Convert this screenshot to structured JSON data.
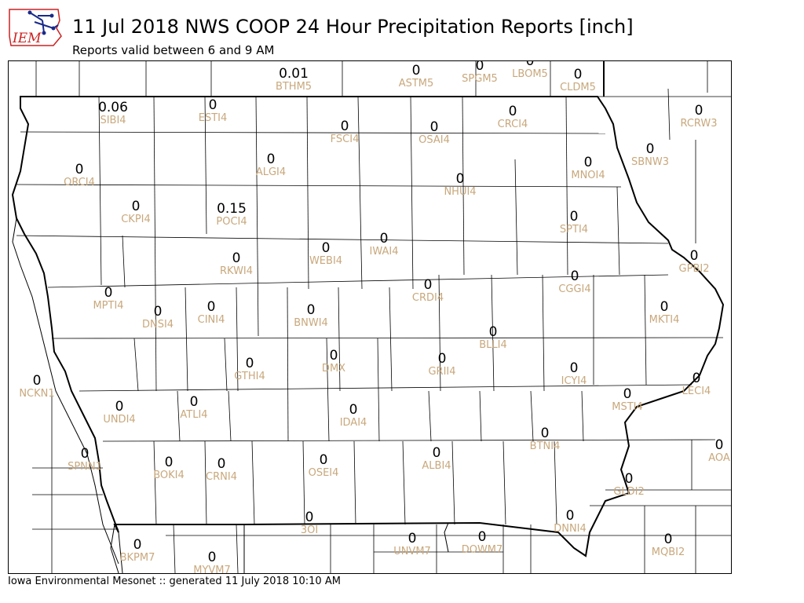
{
  "header": {
    "logo_text": "IEM",
    "title": "11 Jul 2018 NWS COOP 24 Hour Precipitation Reports [inch]",
    "subtitle": "Reports valid between 6 and 9 AM"
  },
  "footer": {
    "text": "Iowa Environmental Mesonet :: generated 11 July 2018 10:10 AM"
  },
  "colors": {
    "station_id": "#c8a87c",
    "value": "#000000",
    "logo_red": "#cc2222",
    "logo_blue": "#1a2a8a"
  },
  "stations": [
    {
      "id": "BTHM5",
      "value": "0.01"
    },
    {
      "id": "ASTM5",
      "value": "0"
    },
    {
      "id": "SPGM5",
      "value": "0"
    },
    {
      "id": "LBOM5",
      "value": "0"
    },
    {
      "id": "CLDM5",
      "value": "0"
    },
    {
      "id": "SIBI4",
      "value": "0.06"
    },
    {
      "id": "ESTI4",
      "value": "0"
    },
    {
      "id": "CRCI4",
      "value": "0"
    },
    {
      "id": "RCRW3",
      "value": "0"
    },
    {
      "id": "FSCI4",
      "value": "0"
    },
    {
      "id": "OSAI4",
      "value": "0"
    },
    {
      "id": "ORCI4",
      "value": "0"
    },
    {
      "id": "ALGI4",
      "value": "0"
    },
    {
      "id": "SBNW3",
      "value": "0"
    },
    {
      "id": "MNOI4",
      "value": "0"
    },
    {
      "id": "NHUI4",
      "value": "0"
    },
    {
      "id": "CKPI4",
      "value": "0"
    },
    {
      "id": "POCI4",
      "value": "0.15"
    },
    {
      "id": "SPTI4",
      "value": "0"
    },
    {
      "id": "WEBI4",
      "value": "0"
    },
    {
      "id": "IWAI4",
      "value": "0"
    },
    {
      "id": "RKWI4",
      "value": "0"
    },
    {
      "id": "GPBI2",
      "value": "0"
    },
    {
      "id": "CGGI4",
      "value": "0"
    },
    {
      "id": "CRDI4",
      "value": "0"
    },
    {
      "id": "MPTI4",
      "value": "0"
    },
    {
      "id": "DNSI4",
      "value": "0"
    },
    {
      "id": "CINI4",
      "value": "0"
    },
    {
      "id": "BNWI4",
      "value": "0"
    },
    {
      "id": "MKTI4",
      "value": "0"
    },
    {
      "id": "BLLI4",
      "value": "0"
    },
    {
      "id": "DMX",
      "value": "0"
    },
    {
      "id": "GTHI4",
      "value": "0"
    },
    {
      "id": "GRII4",
      "value": "0"
    },
    {
      "id": "ICYI4",
      "value": "0"
    },
    {
      "id": "NCKN1",
      "value": "0"
    },
    {
      "id": "LECI4",
      "value": "0"
    },
    {
      "id": "MSTI4",
      "value": "0"
    },
    {
      "id": "ATLI4",
      "value": "0"
    },
    {
      "id": "UNDI4",
      "value": "0"
    },
    {
      "id": "IDAI4",
      "value": "0"
    },
    {
      "id": "BTNI4",
      "value": "0"
    },
    {
      "id": "AOA",
      "value": "0"
    },
    {
      "id": "SPNN1",
      "value": "0"
    },
    {
      "id": "ALBI4",
      "value": "0"
    },
    {
      "id": "BOKI4",
      "value": "0"
    },
    {
      "id": "CRNI4",
      "value": "0"
    },
    {
      "id": "OSEI4",
      "value": "0"
    },
    {
      "id": "GLDI2",
      "value": "0"
    },
    {
      "id": "3OI",
      "value": "0"
    },
    {
      "id": "DNNI4",
      "value": "0"
    },
    {
      "id": "UNVM7",
      "value": "0"
    },
    {
      "id": "DOWM7",
      "value": "0"
    },
    {
      "id": "BKPM7",
      "value": "0"
    },
    {
      "id": "MYVM7",
      "value": "0"
    },
    {
      "id": "MQBI2",
      "value": "0"
    }
  ]
}
